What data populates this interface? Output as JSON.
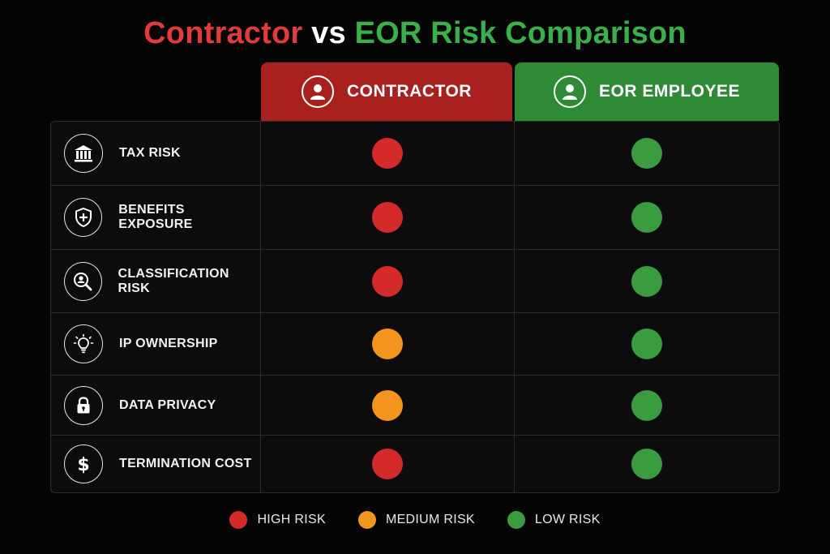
{
  "title": {
    "part1": "Contractor",
    "part2": "vs",
    "part3": "EOR Risk Comparison"
  },
  "columns": {
    "contractor": {
      "label": "CONTRACTOR",
      "icon": "user-icon",
      "color": "#a8211f"
    },
    "eor": {
      "label": "EOR EMPLOYEE",
      "icon": "user-icon",
      "color": "#2f8a36"
    }
  },
  "risk_colors": {
    "high": "#d42a2a",
    "medium": "#f3941e",
    "low": "#3a9b3f"
  },
  "rows": [
    {
      "label": "TAX RISK",
      "icon": "bank-icon",
      "contractor": "high",
      "eor": "low"
    },
    {
      "label": "BENEFITS EXPOSURE",
      "icon": "shield-plus-icon",
      "contractor": "high",
      "eor": "low"
    },
    {
      "label": "CLASSIFICATION RISK",
      "icon": "search-user-icon",
      "contractor": "high",
      "eor": "low"
    },
    {
      "label": "IP OWNERSHIP",
      "icon": "lightbulb-icon",
      "contractor": "medium",
      "eor": "low"
    },
    {
      "label": "DATA PRIVACY",
      "icon": "lock-icon",
      "contractor": "medium",
      "eor": "low"
    },
    {
      "label": "TERMINATION COST",
      "icon": "dollar-icon",
      "contractor": "high",
      "eor": "low"
    }
  ],
  "legend": [
    {
      "label": "HIGH RISK",
      "level": "high"
    },
    {
      "label": "MEDIUM RISK",
      "level": "medium"
    },
    {
      "label": "LOW RISK",
      "level": "low"
    }
  ]
}
